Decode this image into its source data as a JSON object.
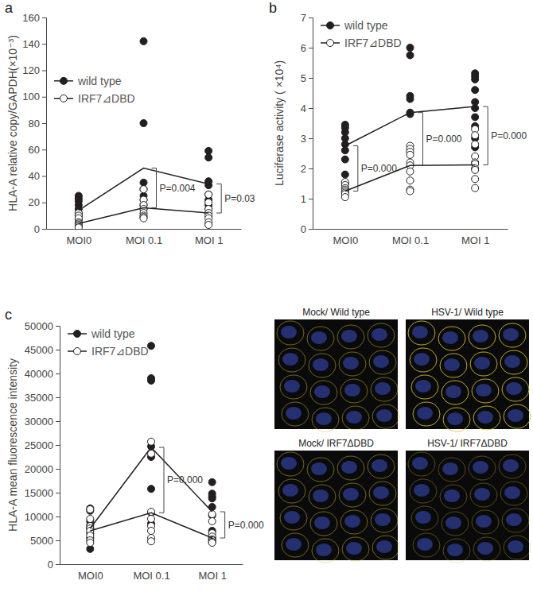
{
  "chart_data": [
    {
      "type": "scatter",
      "title": "a",
      "y_label": "HLA-A relative copy/GAPDH(×10⁻³)",
      "categories": [
        "MOI0",
        "MOI 0.1",
        "MOI 1"
      ],
      "ylim": [
        0,
        160
      ],
      "yticks": [
        0,
        20,
        40,
        60,
        80,
        100,
        120,
        140,
        160
      ],
      "grid": false,
      "legend": "center left",
      "series": [
        {
          "name": "wild type",
          "color": "#231f20",
          "marker": "circle-filled",
          "line_style": "solid",
          "values": [
            14,
            46,
            34
          ],
          "points": [
            [
              25,
              23,
              21,
              18,
              15,
              12,
              10,
              7
            ],
            [
              142,
              80,
              35,
              30,
              25,
              22,
              18,
              15
            ],
            [
              59,
              54,
              36,
              33,
              26,
              22,
              18,
              15
            ]
          ]
        },
        {
          "name": "IRF7⊿DBD",
          "color": "#231f20",
          "marker": "circle-open",
          "line_style": "solid",
          "values": [
            4,
            16,
            12
          ],
          "points": [
            [
              12,
              10,
              8,
              5,
              4,
              3,
              2,
              1
            ],
            [
              30,
              22,
              18,
              15,
              12,
              10,
              9,
              8
            ],
            [
              26,
              20,
              15,
              12,
              10,
              8,
              5,
              3
            ]
          ]
        }
      ],
      "annotations": [
        {
          "text": "P=0.004",
          "category": 1
        },
        {
          "text": "P=0.03",
          "category": 2
        }
      ]
    },
    {
      "type": "scatter",
      "title": "b",
      "y_label": "Luciferase activity ( ×10⁴)",
      "categories": [
        "MOI0",
        "MOI 0.1",
        "MOI 1"
      ],
      "ylim": [
        0,
        7
      ],
      "yticks": [
        0,
        1,
        2,
        3,
        4,
        5,
        6,
        7
      ],
      "grid": false,
      "legend": "upper left",
      "series": [
        {
          "name": "wild type",
          "color": "#231f20",
          "marker": "circle-filled",
          "line_style": "solid",
          "values": [
            2.75,
            3.85,
            4.05
          ],
          "points": [
            [
              3.45,
              3.35,
              3.2,
              3.0,
              2.8,
              2.6,
              2.3,
              1.8,
              1.5
            ],
            [
              6.0,
              5.75,
              4.4,
              4.3,
              3.85,
              3.8
            ],
            [
              5.15,
              5.05,
              4.95,
              4.6,
              4.2,
              4.0,
              3.7,
              3.4,
              3.0,
              2.7
            ]
          ]
        },
        {
          "name": "IRF7⊿DBD",
          "color": "#231f20",
          "marker": "circle-open",
          "line_style": "solid",
          "values": [
            1.25,
            2.1,
            2.12
          ],
          "points": [
            [
              1.55,
              1.45,
              1.35,
              1.3,
              1.25,
              1.2,
              1.15,
              1.05
            ],
            [
              2.75,
              2.65,
              2.55,
              2.45,
              2.2,
              2.1,
              1.9,
              1.6,
              1.3,
              1.25
            ],
            [
              3.3,
              3.1,
              2.8,
              2.4,
              2.2,
              2.15,
              2.0,
              1.95,
              1.65,
              1.35
            ]
          ]
        }
      ],
      "annotations": [
        {
          "text": "P=0.000",
          "category": 0
        },
        {
          "text": "P=0.000",
          "category": 1
        },
        {
          "text": "P=0.000",
          "category": 2
        }
      ]
    },
    {
      "type": "scatter",
      "title": "c",
      "y_label": "HLA-A mean fluorescence intensity",
      "categories": [
        "MOI0",
        "MOI 0.1",
        "MOI 1"
      ],
      "ylim": [
        0,
        50000
      ],
      "yticks": [
        0,
        5000,
        10000,
        15000,
        20000,
        25000,
        30000,
        35000,
        40000,
        45000,
        50000
      ],
      "grid": false,
      "legend": "upper left",
      "series": [
        {
          "name": "wild type",
          "color": "#231f20",
          "marker": "circle-filled",
          "line_style": "solid",
          "values": [
            7500,
            24500,
            11000
          ],
          "points": [
            [
              11700,
              11200,
              9000,
              8200,
              7500,
              6500,
              5500,
              3200
            ],
            [
              45800,
              39000,
              38500,
              24700,
              22500,
              15800,
              10800,
              8500
            ],
            [
              17200,
              14800,
              14200,
              13800,
              12000,
              10200,
              7000,
              5500
            ]
          ]
        },
        {
          "name": "IRF7⊿DBD",
          "color": "#231f20",
          "marker": "circle-open",
          "line_style": "solid",
          "values": [
            7000,
            10800,
            5500
          ],
          "points": [
            [
              11500,
              9500,
              8000,
              7500,
              7000,
              6000,
              5000,
              4500
            ],
            [
              25700,
              23200,
              11000,
              9500,
              8000,
              7000,
              5500,
              4800
            ],
            [
              10500,
              9000,
              6500,
              5800,
              5200,
              5000,
              4700,
              4500
            ]
          ]
        }
      ],
      "annotations": [
        {
          "text": "P=0.000",
          "category": 1
        },
        {
          "text": "P=0.000",
          "category": 2
        }
      ]
    }
  ],
  "images": [
    {
      "label": "Mock/ Wild type"
    },
    {
      "label": "HSV-1/ Wild type"
    },
    {
      "label": "Mock/ IRF7ΔDBD"
    },
    {
      "label": "HSV-1/ IRF7ΔDBD"
    }
  ]
}
